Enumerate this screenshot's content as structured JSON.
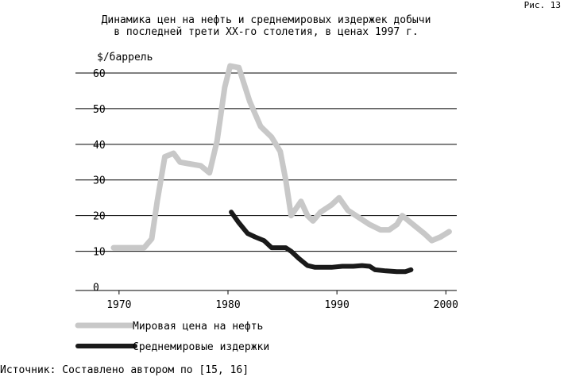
{
  "figure_label": "Рис. 13",
  "source_note": "Источник: Составлено автором по [15, 16]",
  "chart_data": {
    "type": "line",
    "title_lines": [
      "Динамика цен на нефть и среднемировых издержек добычи",
      "в последней трети XX-го столетия, в ценах 1997 г."
    ],
    "ylabel": "$/баррель",
    "xlabel": "",
    "xlim": [
      1966,
      2001
    ],
    "ylim": [
      -1,
      62
    ],
    "yticks": [
      0,
      10,
      20,
      30,
      40,
      50,
      60
    ],
    "xticks": [
      1970,
      1980,
      1990,
      2000
    ],
    "grid": "horizontal",
    "legend_position": "bottom-left",
    "series": [
      {
        "name": "Мировая цена на нефть",
        "color": "#c8c8c8",
        "x": [
          1969.5,
          1970.5,
          1971.5,
          1972.3,
          1973,
          1973.5,
          1974.2,
          1975,
          1975.6,
          1976.5,
          1977.5,
          1978.3,
          1979,
          1979.7,
          1980.2,
          1981,
          1982,
          1983,
          1984,
          1984.8,
          1985.3,
          1985.8,
          1986.7,
          1987.3,
          1987.8,
          1988.5,
          1989.5,
          1990.2,
          1991,
          1992,
          1993,
          1994,
          1994.8,
          1995.5,
          1996,
          1997,
          1998,
          1998.7,
          1999.5,
          2000.3
        ],
        "values": [
          11,
          11,
          11,
          11,
          13.5,
          24,
          36.5,
          37.5,
          35,
          34.5,
          34,
          32,
          41,
          56,
          62,
          61.5,
          52,
          45,
          42,
          38,
          30,
          20,
          24,
          20,
          18.5,
          21,
          23,
          25,
          21.5,
          19.5,
          17.5,
          16,
          16,
          17.5,
          20,
          17.5,
          15,
          13,
          14,
          15.5
        ]
      },
      {
        "name": "Среднемировые издержки",
        "color": "#1a1a1a",
        "x": [
          1980.3,
          1981,
          1981.8,
          1982.5,
          1983.3,
          1984,
          1984.8,
          1985.3,
          1985.8,
          1986.5,
          1987.3,
          1988,
          1988.8,
          1989.5,
          1990.5,
          1991.5,
          1992.3,
          1993,
          1993.5,
          1994.5,
          1995.5,
          1996.3,
          1996.8
        ],
        "values": [
          21,
          18,
          15,
          14,
          13,
          11,
          11,
          11,
          10,
          8,
          6,
          5.5,
          5.5,
          5.5,
          5.8,
          5.8,
          6,
          5.8,
          4.8,
          4.5,
          4.3,
          4.3,
          4.8
        ]
      }
    ]
  }
}
